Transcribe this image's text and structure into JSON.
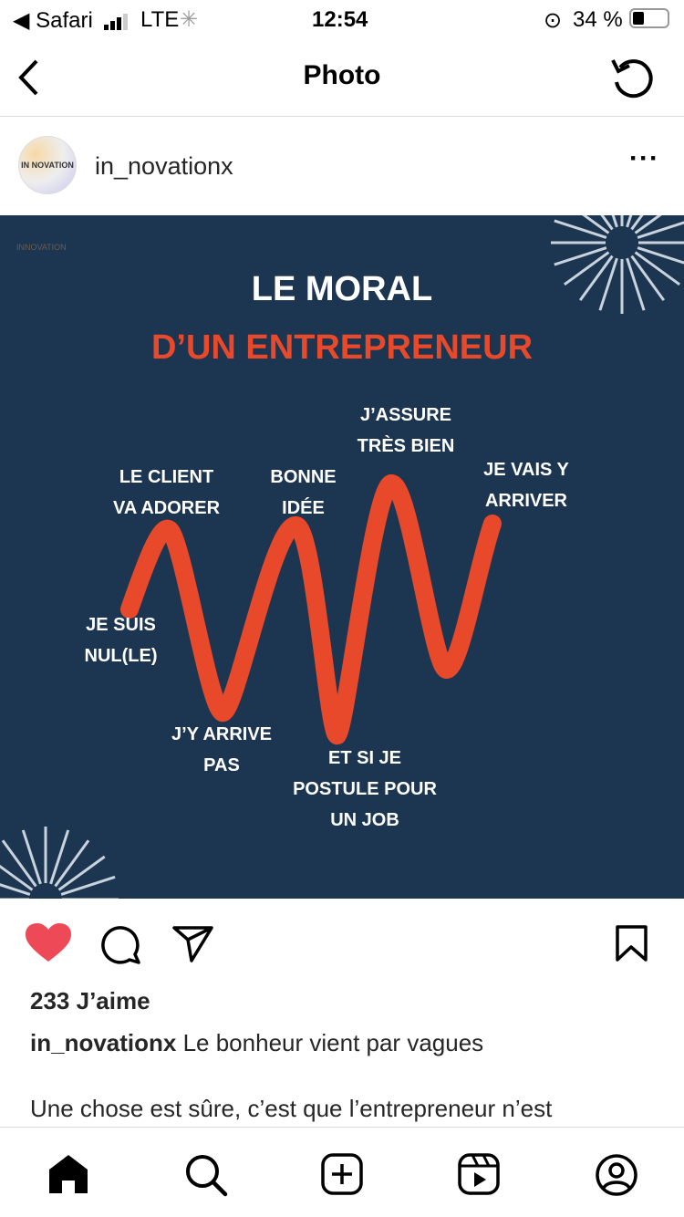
{
  "status": {
    "back_app": "Safari",
    "network": "LTE",
    "time": "12:54",
    "battery": "34 %",
    "battery_level": 0.34
  },
  "nav": {
    "title": "Photo"
  },
  "post": {
    "username": "in_novationx",
    "avatar_text": "IN NOVATION",
    "image": {
      "title1": "LE MORAL",
      "title2": "D’UN ENTREPRENEUR",
      "logo_text": "INNOVATION",
      "labels": [
        "LE CLIENT\nVA ADORER",
        "BONNE\nIDÉE",
        "J’ASSURE\nTRÈS BIEN",
        "JE VAIS Y\nARRIVER",
        "JE SUIS\nNUL(LE)",
        "J’Y ARRIVE\nPAS",
        "ET SI JE\nPOSTULE POUR\nUN JOB"
      ],
      "colors": {
        "background": "#1c3550",
        "accent": "#e8492a"
      }
    },
    "liked": true,
    "likes": "233 J’aime",
    "caption_user": "in_novationx",
    "caption_text": " Le bonheur vient par vagues",
    "caption_more": "Une chose est sûre, c’est que l’entrepreneur n’est"
  },
  "icons": [
    "back-icon",
    "refresh-icon",
    "more-icon",
    "heart-icon",
    "comment-icon",
    "share-icon",
    "bookmark-icon",
    "home-icon",
    "search-icon",
    "add-icon",
    "reels-icon",
    "profile-icon"
  ]
}
